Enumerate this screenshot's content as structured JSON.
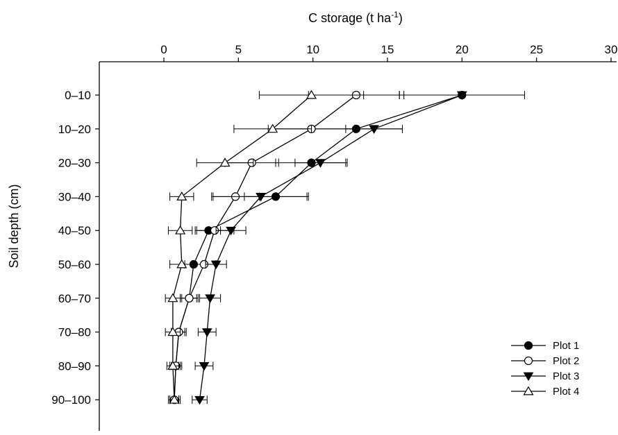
{
  "chart_data": {
    "type": "line",
    "title": "",
    "xlabel": "C storage (t ha⁻¹)",
    "ylabel": "Soil depth (cm)",
    "x_axis_position": "top",
    "xlim": [
      -2,
      30
    ],
    "xticks": [
      0,
      5,
      10,
      15,
      20,
      25,
      30
    ],
    "xtick_labels": [
      "0",
      "5",
      "10",
      "15",
      "20",
      "25",
      "30"
    ],
    "categories": [
      "0–10",
      "10–20",
      "20–30",
      "30–40",
      "40–50",
      "50–60",
      "60–70",
      "70–80",
      "80–90",
      "90–100"
    ],
    "grid": false,
    "legend_position": "bottom-right",
    "series": [
      {
        "name": "Plot 1",
        "marker": "filled-circle",
        "values": [
          20.0,
          12.9,
          9.9,
          7.5,
          3.0,
          2.0,
          1.7,
          1.0,
          0.8,
          0.7
        ],
        "errors": [
          4.2,
          3.1,
          2.4,
          2.1,
          0.8,
          0.6,
          0.5,
          0.4,
          0.3,
          0.3
        ]
      },
      {
        "name": "Plot 2",
        "marker": "open-circle",
        "values": [
          12.9,
          9.9,
          5.9,
          4.8,
          3.4,
          2.7,
          1.7,
          1.0,
          0.8,
          0.7
        ],
        "errors": [
          3.2,
          2.9,
          1.8,
          1.6,
          1.3,
          0.8,
          0.6,
          0.5,
          0.4,
          0.3
        ]
      },
      {
        "name": "Plot 3",
        "marker": "filled-triangle-down",
        "values": [
          20.0,
          14.1,
          10.5,
          6.5,
          4.5,
          3.5,
          3.1,
          2.9,
          2.7,
          2.4
        ],
        "errors": [
          4.2,
          1.9,
          1.7,
          3.2,
          1.0,
          0.7,
          0.7,
          0.6,
          0.6,
          0.5
        ]
      },
      {
        "name": "Plot 4",
        "marker": "open-triangle-up",
        "values": [
          9.9,
          7.3,
          4.1,
          1.2,
          1.1,
          1.2,
          0.6,
          0.6,
          0.6,
          0.7
        ],
        "errors": [
          3.5,
          2.6,
          1.9,
          0.8,
          0.8,
          0.8,
          0.5,
          0.5,
          0.4,
          0.4
        ]
      }
    ]
  }
}
